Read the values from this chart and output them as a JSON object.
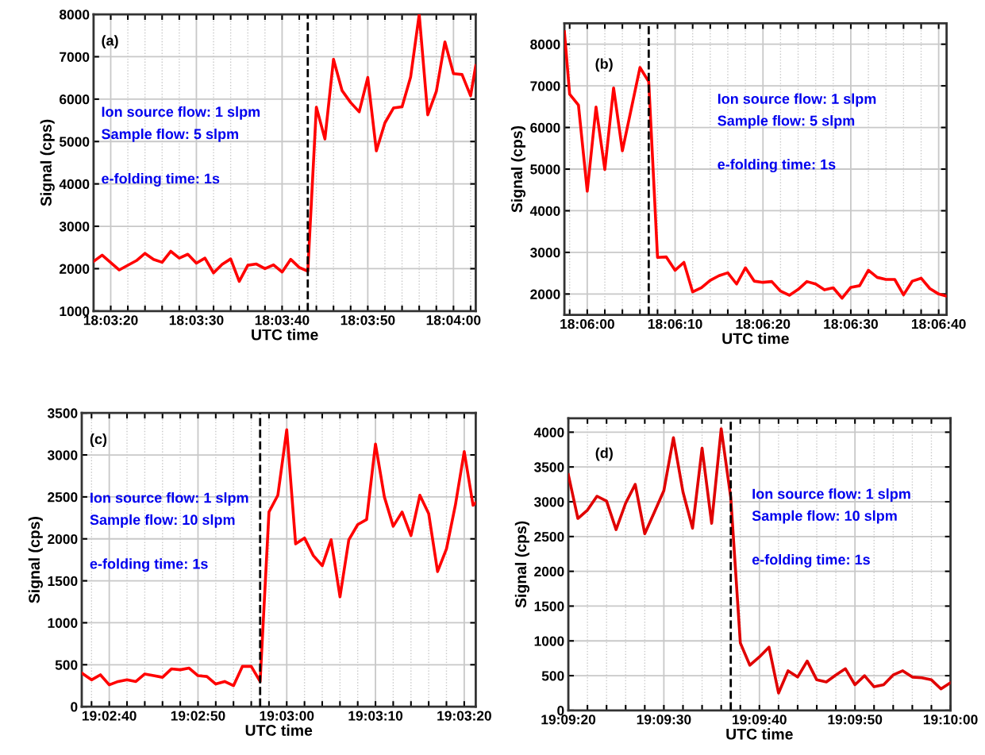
{
  "chart_data": [
    {
      "type": "line",
      "xlabel": "UTC time",
      "ylabel": "Signal (cps)",
      "annotations": [
        "(a)",
        "Ion source flow: 1 slpm",
        "Sample flow: 5 slpm",
        "e-folding time: 1s"
      ],
      "series": [
        {
          "color": "#ff0000",
          "x": [
            18.055,
            18.055278,
            18.055833,
            18.056389,
            18.056667,
            18.056944,
            18.057222,
            18.0575,
            18.057778,
            18.058056,
            18.058333,
            18.058611,
            18.058889,
            18.059167,
            18.059444,
            18.059722,
            18.06,
            18.060278,
            18.060556,
            18.060833,
            18.061111,
            18.061389,
            18.061667,
            18.061944,
            18.062222,
            18.0625,
            18.062778,
            18.063056,
            18.063333,
            18.063611,
            18.063889,
            18.064167,
            18.064444,
            18.064722,
            18.065,
            18.065278,
            18.065556,
            18.065833,
            18.066111,
            18.066389,
            18.066667,
            18.066944,
            18.067222,
            18.067389
          ],
          "values": [
            2170,
            2320,
            1970,
            2190,
            2360,
            2220,
            2150,
            2410,
            2250,
            2340,
            2130,
            2250,
            1900,
            2100,
            2230,
            1700,
            2080,
            2110,
            2000,
            2090,
            1920,
            2220,
            2030,
            1940,
            5810,
            5060,
            6940,
            6200,
            5920,
            5700,
            6510,
            4780,
            5440,
            5790,
            5820,
            6520,
            8000,
            5630,
            6180,
            7350,
            6600,
            6580,
            6080,
            6790
          ]
        }
      ],
      "xlim": [
        18.055,
        18.067389
      ],
      "xticks": [
        {
          "value": 18.055556,
          "label": "18:03:20"
        },
        {
          "value": 18.056111,
          "label": null
        },
        {
          "value": 18.056667,
          "label": null
        },
        {
          "value": 18.057222,
          "label": null
        },
        {
          "value": 18.057778,
          "label": null
        },
        {
          "value": 18.058333,
          "label": "18:03:30"
        },
        {
          "value": 18.058889,
          "label": null
        },
        {
          "value": 18.059444,
          "label": null
        },
        {
          "value": 18.06,
          "label": null
        },
        {
          "value": 18.060556,
          "label": null
        },
        {
          "value": 18.061111,
          "label": "18:03:40"
        },
        {
          "value": 18.061667,
          "label": null
        },
        {
          "value": 18.062222,
          "label": null
        },
        {
          "value": 18.062778,
          "label": null
        },
        {
          "value": 18.063333,
          "label": null
        },
        {
          "value": 18.063889,
          "label": "18:03:50"
        },
        {
          "value": 18.064444,
          "label": null
        },
        {
          "value": 18.065,
          "label": null
        },
        {
          "value": 18.065556,
          "label": null
        },
        {
          "value": 18.066111,
          "label": null
        },
        {
          "value": 18.066667,
          "label": "18:04:00"
        },
        {
          "value": 18.067222,
          "label": null
        }
      ],
      "ylim": [
        1000,
        8000
      ],
      "yticks": [
        1000,
        2000,
        3000,
        4000,
        5000,
        6000,
        7000,
        8000
      ],
      "ref_lines": [
        {
          "axis": "x",
          "value": 18.061944,
          "color": "#000000",
          "line_style": "dashed"
        }
      ],
      "grid": true,
      "line_style": "solid",
      "marker": "none"
    },
    {
      "type": "line",
      "xlabel": "UTC time",
      "ylabel": "Signal (cps)",
      "annotations": [
        "(b)",
        "Ion source flow: 1 slpm",
        "Sample flow: 5 slpm",
        "e-folding time: 1s"
      ],
      "series": [
        {
          "color": "#ff0000",
          "x": [
            18.099278,
            18.099444,
            18.099722,
            18.1,
            18.100278,
            18.100556,
            18.100833,
            18.101111,
            18.101389,
            18.101667,
            18.101944,
            18.102222,
            18.1025,
            18.102778,
            18.103056,
            18.103333,
            18.103611,
            18.103889,
            18.104167,
            18.104444,
            18.104722,
            18.105,
            18.105278,
            18.105556,
            18.105833,
            18.106111,
            18.106389,
            18.106667,
            18.106944,
            18.107222,
            18.1075,
            18.107778,
            18.108056,
            18.108333,
            18.108611,
            18.108889,
            18.109167,
            18.109444,
            18.109722,
            18.11,
            18.110278,
            18.110556,
            18.110833,
            18.111111,
            18.111361
          ],
          "values": [
            8300,
            6800,
            6540,
            4470,
            6490,
            4990,
            6950,
            5440,
            6440,
            7440,
            7100,
            2880,
            2890,
            2570,
            2760,
            2050,
            2150,
            2330,
            2440,
            2510,
            2240,
            2630,
            2310,
            2280,
            2300,
            2070,
            1970,
            2110,
            2300,
            2240,
            2100,
            2150,
            1900,
            2160,
            2200,
            2570,
            2400,
            2350,
            2350,
            1980,
            2310,
            2380,
            2130,
            2000,
            1950
          ]
        }
      ],
      "xlim": [
        18.099278,
        18.111361
      ],
      "xticks": [
        {
          "value": 18.099444,
          "label": null
        },
        {
          "value": 18.1,
          "label": "18:06:00"
        },
        {
          "value": 18.100556,
          "label": null
        },
        {
          "value": 18.101111,
          "label": null
        },
        {
          "value": 18.101667,
          "label": null
        },
        {
          "value": 18.102222,
          "label": null
        },
        {
          "value": 18.102778,
          "label": "18:06:10"
        },
        {
          "value": 18.103333,
          "label": null
        },
        {
          "value": 18.103889,
          "label": null
        },
        {
          "value": 18.104444,
          "label": null
        },
        {
          "value": 18.105,
          "label": null
        },
        {
          "value": 18.105556,
          "label": "18:06:20"
        },
        {
          "value": 18.106111,
          "label": null
        },
        {
          "value": 18.106667,
          "label": null
        },
        {
          "value": 18.107222,
          "label": null
        },
        {
          "value": 18.107778,
          "label": null
        },
        {
          "value": 18.108333,
          "label": "18:06:30"
        },
        {
          "value": 18.108889,
          "label": null
        },
        {
          "value": 18.109444,
          "label": null
        },
        {
          "value": 18.11,
          "label": null
        },
        {
          "value": 18.110556,
          "label": null
        },
        {
          "value": 18.111111,
          "label": "18:06:40"
        }
      ],
      "ylim": [
        1500,
        8500
      ],
      "yticks": [
        2000,
        3000,
        4000,
        5000,
        6000,
        7000,
        8000
      ],
      "ref_lines": [
        {
          "axis": "x",
          "value": 18.101944,
          "color": "#000000",
          "line_style": "dashed"
        }
      ],
      "grid": true,
      "line_style": "solid",
      "marker": "none"
    },
    {
      "type": "line",
      "xlabel": "UTC time",
      "ylabel": "Signal (cps)",
      "annotations": [
        "(c)",
        "Ion source flow: 1 slpm",
        "Sample flow: 10 slpm",
        "e-folding time: 1s"
      ],
      "series": [
        {
          "color": "#ff0000",
          "x": [
            19.043583,
            19.043889,
            19.044167,
            19.044444,
            19.044722,
            19.045,
            19.045278,
            19.045556,
            19.045833,
            19.046111,
            19.046389,
            19.046667,
            19.046944,
            19.047222,
            19.0475,
            19.047778,
            19.048056,
            19.048333,
            19.048611,
            19.048889,
            19.049167,
            19.049444,
            19.049722,
            19.05,
            19.050278,
            19.050556,
            19.050833,
            19.051111,
            19.051389,
            19.051667,
            19.051944,
            19.052222,
            19.0525,
            19.052778,
            19.053056,
            19.053333,
            19.053611,
            19.053889,
            19.054167,
            19.054444,
            19.054722,
            19.055,
            19.055278,
            19.055556,
            19.055833,
            19.055917
          ],
          "values": [
            400,
            320,
            380,
            260,
            300,
            320,
            300,
            390,
            370,
            350,
            450,
            440,
            460,
            370,
            360,
            270,
            300,
            250,
            480,
            480,
            300,
            2320,
            2520,
            3300,
            1940,
            2010,
            1800,
            1680,
            1990,
            1310,
            1990,
            2170,
            2230,
            3130,
            2500,
            2150,
            2320,
            2040,
            2520,
            2300,
            1610,
            1880,
            2400,
            3040,
            2400,
            2430
          ]
        }
      ],
      "xlim": [
        19.043583,
        19.055917
      ],
      "xticks": [
        {
          "value": 19.043889,
          "label": null
        },
        {
          "value": 19.044444,
          "label": "19:02:40"
        },
        {
          "value": 19.045,
          "label": null
        },
        {
          "value": 19.045556,
          "label": null
        },
        {
          "value": 19.046111,
          "label": null
        },
        {
          "value": 19.046667,
          "label": null
        },
        {
          "value": 19.047222,
          "label": "19:02:50"
        },
        {
          "value": 19.047778,
          "label": null
        },
        {
          "value": 19.048333,
          "label": null
        },
        {
          "value": 19.048889,
          "label": null
        },
        {
          "value": 19.049444,
          "label": null
        },
        {
          "value": 19.05,
          "label": "19:03:00"
        },
        {
          "value": 19.050556,
          "label": null
        },
        {
          "value": 19.051111,
          "label": null
        },
        {
          "value": 19.051667,
          "label": null
        },
        {
          "value": 19.052222,
          "label": null
        },
        {
          "value": 19.052778,
          "label": "19:03:10"
        },
        {
          "value": 19.053333,
          "label": null
        },
        {
          "value": 19.053889,
          "label": null
        },
        {
          "value": 19.054444,
          "label": null
        },
        {
          "value": 19.055,
          "label": null
        },
        {
          "value": 19.055556,
          "label": "19:03:20"
        }
      ],
      "ylim": [
        0,
        3500
      ],
      "yticks": [
        0,
        500,
        1000,
        1500,
        2000,
        2500,
        3000,
        3500
      ],
      "ref_lines": [
        {
          "axis": "x",
          "value": 19.049167,
          "color": "#000000",
          "line_style": "dashed"
        }
      ],
      "grid": true,
      "line_style": "solid",
      "marker": "none"
    },
    {
      "type": "line",
      "xlabel": "UTC time",
      "ylabel": "Signal (cps)",
      "annotations": [
        "(d)",
        "Ion source flow: 1 slpm",
        "Sample flow: 10 slpm",
        "e-folding time: 1s"
      ],
      "series": [
        {
          "color": "#e00000",
          "x": [
            19.155556,
            19.155833,
            19.156111,
            19.156389,
            19.156667,
            19.156944,
            19.157222,
            19.1575,
            19.157778,
            19.158056,
            19.158333,
            19.158611,
            19.158889,
            19.159167,
            19.159444,
            19.159722,
            19.16,
            19.160278,
            19.160556,
            19.160833,
            19.161111,
            19.161389,
            19.161667,
            19.161944,
            19.162222,
            19.1625,
            19.162778,
            19.163056,
            19.163333,
            19.163611,
            19.163889,
            19.164167,
            19.164444,
            19.164722,
            19.165,
            19.165278,
            19.165556,
            19.165833,
            19.166111,
            19.166389,
            19.166667
          ],
          "values": [
            3390,
            2760,
            2880,
            3080,
            3010,
            2600,
            2980,
            3250,
            2540,
            2850,
            3160,
            3920,
            3140,
            2620,
            3770,
            2690,
            4050,
            3060,
            970,
            650,
            770,
            910,
            250,
            570,
            480,
            710,
            440,
            410,
            510,
            600,
            370,
            500,
            340,
            370,
            510,
            570,
            480,
            470,
            440,
            310,
            400
          ]
        }
      ],
      "xlim": [
        19.155556,
        19.166667
      ],
      "xticks": [
        {
          "value": 19.155556,
          "label": "19:09:20"
        },
        {
          "value": 19.156111,
          "label": null
        },
        {
          "value": 19.156667,
          "label": null
        },
        {
          "value": 19.157222,
          "label": null
        },
        {
          "value": 19.157778,
          "label": null
        },
        {
          "value": 19.158333,
          "label": "19:09:30"
        },
        {
          "value": 19.158889,
          "label": null
        },
        {
          "value": 19.159444,
          "label": null
        },
        {
          "value": 19.16,
          "label": null
        },
        {
          "value": 19.160556,
          "label": null
        },
        {
          "value": 19.161111,
          "label": "19:09:40"
        },
        {
          "value": 19.161667,
          "label": null
        },
        {
          "value": 19.162222,
          "label": null
        },
        {
          "value": 19.162778,
          "label": null
        },
        {
          "value": 19.163333,
          "label": null
        },
        {
          "value": 19.163889,
          "label": "19:09:50"
        },
        {
          "value": 19.164444,
          "label": null
        },
        {
          "value": 19.165,
          "label": null
        },
        {
          "value": 19.165556,
          "label": null
        },
        {
          "value": 19.166111,
          "label": null
        },
        {
          "value": 19.166667,
          "label": "19:10:00"
        }
      ],
      "ylim": [
        0,
        4200
      ],
      "yticks": [
        0,
        500,
        1000,
        1500,
        2000,
        2500,
        3000,
        3500,
        4000
      ],
      "ref_lines": [
        {
          "axis": "x",
          "value": 19.160278,
          "color": "#000000",
          "line_style": "dashed"
        }
      ],
      "grid": true,
      "line_style": "solid",
      "marker": "none"
    }
  ]
}
